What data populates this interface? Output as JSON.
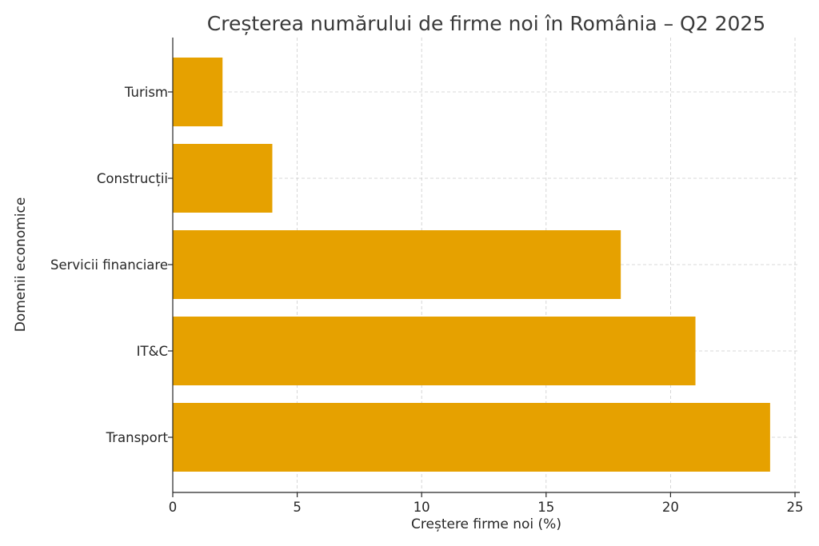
{
  "chart_data": {
    "type": "bar",
    "orientation": "horizontal",
    "title": "Creșterea numărului de firme noi în România – Q2 2025",
    "xlabel": "Creștere firme noi (%)",
    "ylabel": "Domenii economice",
    "categories": [
      "Transport",
      "IT&C",
      "Servicii financiare",
      "Construcții",
      "Turism"
    ],
    "values": [
      24,
      21,
      18,
      4,
      2
    ],
    "xlim": [
      0,
      25
    ],
    "xticks": [
      0,
      5,
      10,
      15,
      20,
      25
    ],
    "grid": true,
    "bar_color": "#e6a100"
  }
}
